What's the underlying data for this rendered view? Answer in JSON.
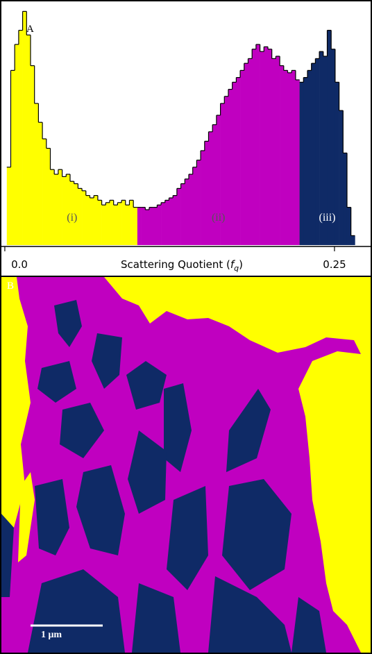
{
  "chart_data": {
    "type": "histogram",
    "panel_label": "A",
    "xlabel": {
      "text": "Scattering Quotient (",
      "symbol": "f",
      "subscript": "q",
      "close": ")"
    },
    "xlim": [
      -0.0026,
      0.2774
    ],
    "xticks": [
      {
        "value": 0,
        "label": "0.0"
      },
      0.25
    ],
    "ylim": [
      0,
      100
    ],
    "series": [
      {
        "name": "(i)",
        "color": "#ffff00",
        "bins": [
          0.0015,
          0.0045,
          0.0075,
          0.0105,
          0.0135,
          0.0165,
          0.0195,
          0.0225,
          0.0255,
          0.0285,
          0.0315,
          0.0345,
          0.0375,
          0.0405,
          0.0435,
          0.0465,
          0.0495,
          0.0525,
          0.0555,
          0.0585,
          0.0615,
          0.0645,
          0.0675,
          0.0705,
          0.0735,
          0.0765,
          0.0795,
          0.0825,
          0.0855,
          0.0885,
          0.0915,
          0.0945,
          0.0975,
          0.1005
        ],
        "values": [
          33,
          74,
          85,
          91,
          99,
          89,
          76,
          60,
          52,
          45,
          41,
          32,
          30,
          32,
          29,
          30,
          27,
          26,
          24,
          23,
          21,
          20,
          21,
          19,
          17,
          18,
          19,
          17,
          18,
          19,
          17,
          19,
          16
        ]
      },
      {
        "name": "(ii)",
        "color": "#c000c0",
        "bins": [
          0.1005,
          0.1035,
          0.1065,
          0.1095,
          0.1125,
          0.1155,
          0.1185,
          0.1215,
          0.1245,
          0.1275,
          0.1305,
          0.1335,
          0.1365,
          0.1395,
          0.1425,
          0.1455,
          0.1485,
          0.1515,
          0.1545,
          0.1575,
          0.1605,
          0.1635,
          0.1665,
          0.1695,
          0.1725,
          0.1755,
          0.1785,
          0.1815,
          0.1845,
          0.1875,
          0.1905,
          0.1935,
          0.1965,
          0.1995,
          0.2025,
          0.2055,
          0.2085,
          0.2115,
          0.2145,
          0.2175,
          0.2205,
          0.2235
        ],
        "values": [
          16,
          16,
          15,
          16,
          16,
          17,
          18,
          19,
          20,
          21,
          24,
          26,
          28,
          30,
          33,
          36,
          40,
          44,
          48,
          51,
          55,
          60,
          63,
          66,
          69,
          71,
          74,
          77,
          79,
          83,
          85,
          82,
          84,
          83,
          79,
          80,
          76,
          74,
          73,
          74,
          70
        ]
      },
      {
        "name": "(iii)",
        "color": "#0f2a66",
        "bins": [
          0.2235,
          0.2265,
          0.2295,
          0.2325,
          0.2355,
          0.2385,
          0.2415,
          0.2445,
          0.2475,
          0.2505,
          0.2535,
          0.2565,
          0.2595,
          0.2625,
          0.2655
        ],
        "values": [
          69,
          71,
          74,
          77,
          79,
          82,
          80,
          91,
          83,
          69,
          57,
          39,
          16,
          4
        ]
      }
    ]
  },
  "image_panel": {
    "panel_label": "B",
    "scale_bar": "1 μm"
  }
}
